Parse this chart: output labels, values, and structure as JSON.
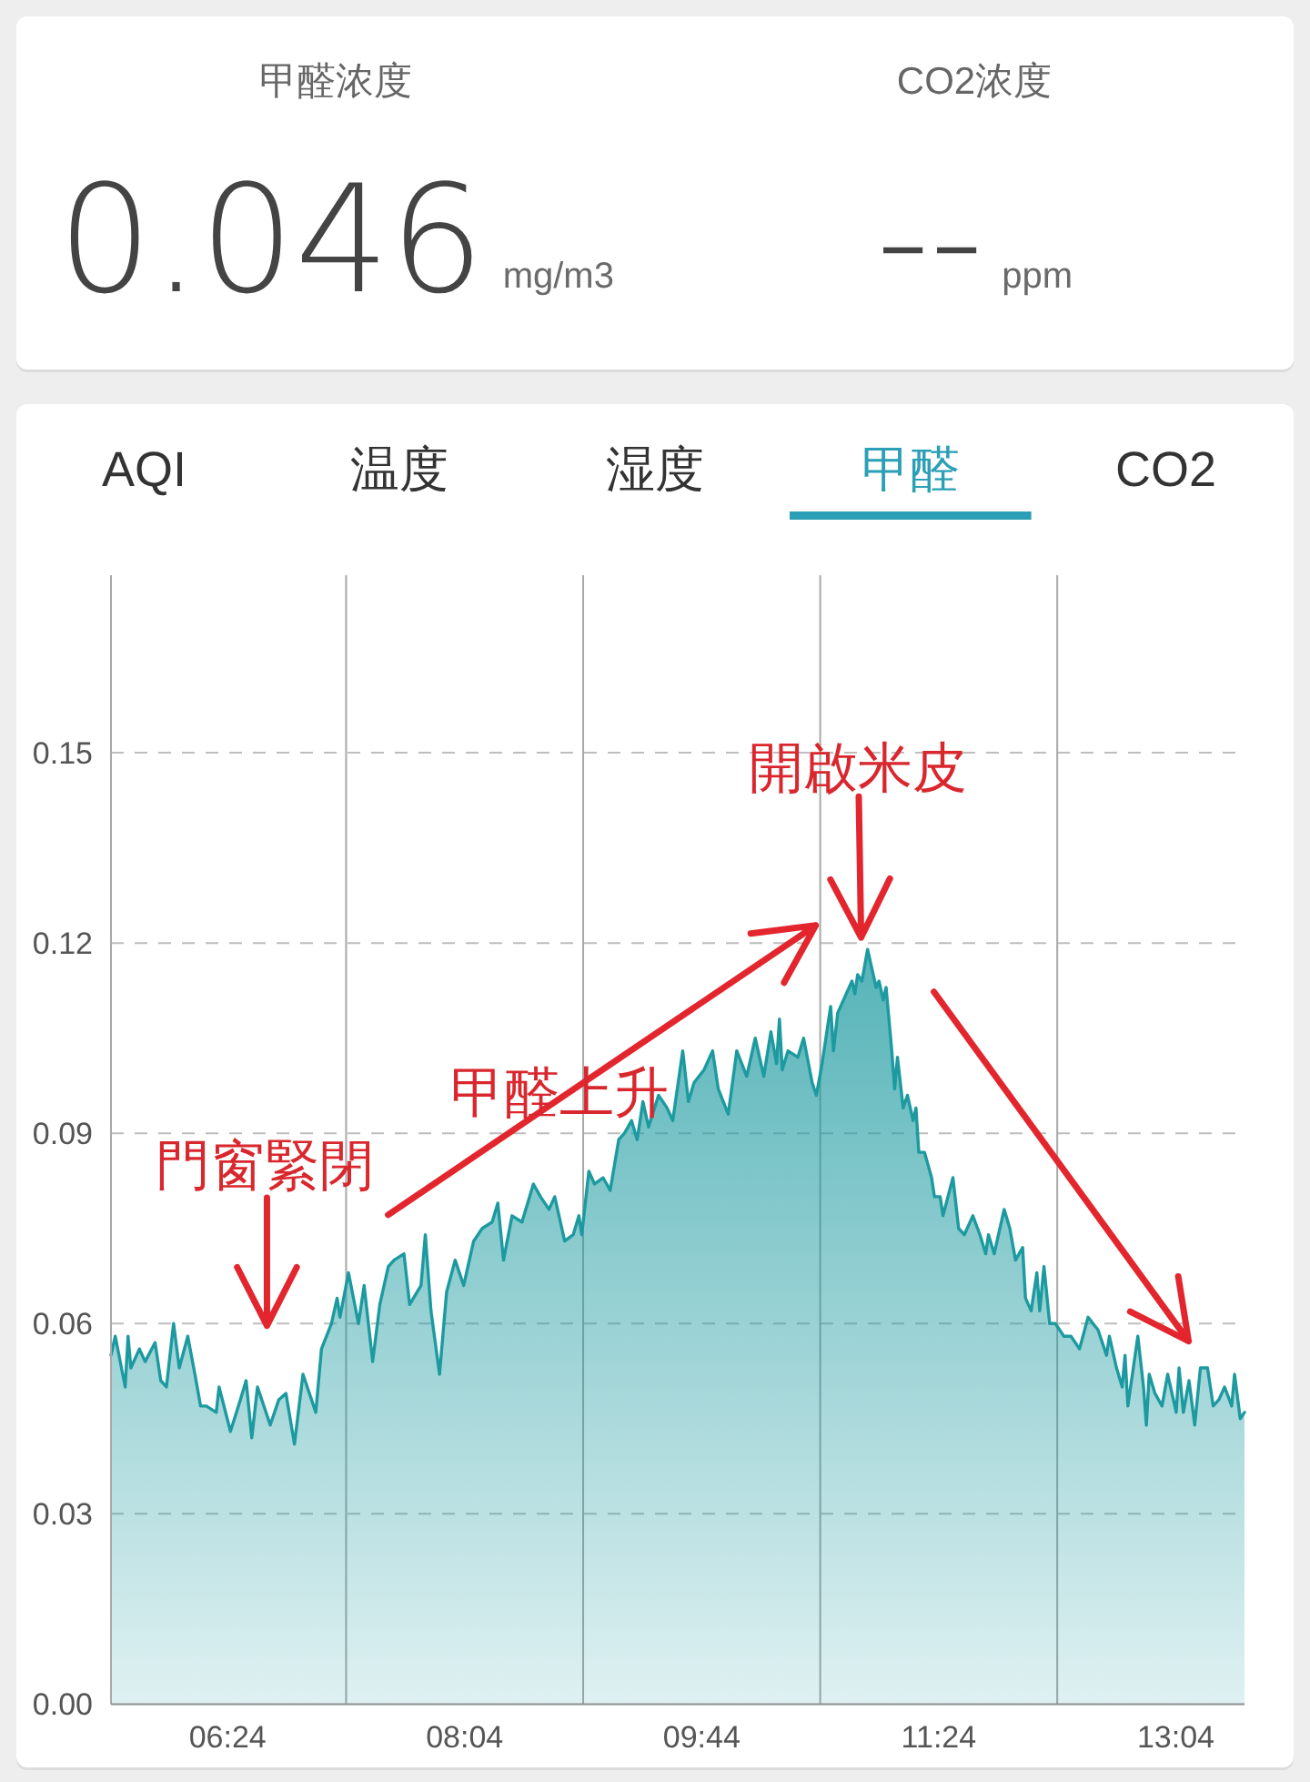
{
  "chart_data": [
    {
      "type": "other",
      "annotations": [
        "甲醛浓度",
        "0.046",
        "mg/m3",
        "CO2浓度",
        "--",
        "ppm"
      ]
    },
    {
      "type": "other",
      "categories": [
        "AQI",
        "温度",
        "湿度",
        "甲醛",
        "CO2"
      ],
      "colors": [
        "#333333",
        "#333333",
        "#333333",
        "#2a9fb5",
        "#333333"
      ]
    },
    {
      "type": "area",
      "color": "#1c9aa0",
      "xlim": [
        5.58,
        13.55
      ],
      "ylim": [
        0,
        0.178
      ],
      "xticks": [
        {
          "value": 6.4,
          "label": "06:24"
        },
        {
          "value": 7.2333,
          "label": null
        },
        {
          "value": 8.0667,
          "label": "08:04"
        },
        {
          "value": 8.9,
          "label": null
        },
        {
          "value": 9.7333,
          "label": "09:44"
        },
        {
          "value": 10.5667,
          "label": null
        },
        {
          "value": 11.4,
          "label": "11:24"
        },
        {
          "value": 12.2333,
          "label": null
        },
        {
          "value": 13.0667,
          "label": "13:04"
        }
      ],
      "yticks": [
        {
          "value": 0,
          "label": "0.00"
        },
        0.03,
        0.06,
        0.09,
        0.12,
        0.15
      ],
      "grid": true,
      "annotations": [
        "門窗緊閉",
        "甲醛上升",
        "開啟米皮"
      ],
      "x": [
        5.58,
        5.61,
        5.68,
        5.7,
        5.72,
        5.78,
        5.82,
        5.89,
        5.93,
        5.97,
        6.02,
        6.06,
        6.12,
        6.17,
        6.21,
        6.25,
        6.32,
        6.34,
        6.42,
        6.49,
        6.53,
        6.57,
        6.61,
        6.7,
        6.76,
        6.81,
        6.87,
        6.93,
        7.02,
        7.06,
        7.13,
        7.17,
        7.19,
        7.25,
        7.32,
        7.36,
        7.42,
        7.47,
        7.53,
        7.57,
        7.64,
        7.68,
        7.76,
        7.79,
        7.83,
        7.89,
        7.94,
        8.0,
        8.06,
        8.13,
        8.19,
        8.26,
        8.3,
        8.34,
        8.4,
        8.47,
        8.55,
        8.6,
        8.66,
        8.7,
        8.77,
        8.83,
        8.87,
        8.89,
        8.94,
        8.98,
        9.04,
        9.09,
        9.15,
        9.19,
        9.24,
        9.28,
        9.32,
        9.36,
        9.43,
        9.49,
        9.53,
        9.6,
        9.64,
        9.68,
        9.75,
        9.81,
        9.85,
        9.92,
        9.98,
        10.05,
        10.11,
        10.17,
        10.22,
        10.26,
        10.28,
        10.3,
        10.34,
        10.41,
        10.45,
        10.51,
        10.54,
        10.58,
        10.64,
        10.66,
        10.69,
        10.75,
        10.79,
        10.81,
        10.83,
        10.86,
        10.9,
        10.94,
        10.96,
        10.98,
        11.01,
        11.03,
        11.07,
        11.09,
        11.11,
        11.15,
        11.18,
        11.22,
        11.24,
        11.26,
        11.3,
        11.35,
        11.37,
        11.41,
        11.43,
        11.5,
        11.54,
        11.58,
        11.64,
        11.69,
        11.73,
        11.75,
        11.79,
        11.86,
        11.9,
        11.94,
        11.99,
        12.01,
        12.05,
        12.09,
        12.11,
        12.14,
        12.18,
        12.22,
        12.28,
        12.33,
        12.39,
        12.45,
        12.52,
        12.58,
        12.6,
        12.65,
        12.69,
        12.71,
        12.73,
        12.8,
        12.84,
        12.86,
        12.88,
        12.92,
        12.97,
        13.01,
        13.07,
        13.09,
        13.12,
        13.16,
        13.2,
        13.24,
        13.29,
        13.33,
        13.37,
        13.41,
        13.46,
        13.48,
        13.52,
        13.55
      ],
      "values": [
        0.055,
        0.058,
        0.05,
        0.058,
        0.053,
        0.056,
        0.054,
        0.057,
        0.051,
        0.05,
        0.06,
        0.053,
        0.058,
        0.052,
        0.047,
        0.047,
        0.046,
        0.05,
        0.043,
        0.048,
        0.051,
        0.042,
        0.05,
        0.044,
        0.048,
        0.049,
        0.041,
        0.052,
        0.046,
        0.056,
        0.06,
        0.064,
        0.061,
        0.068,
        0.06,
        0.066,
        0.054,
        0.063,
        0.069,
        0.07,
        0.071,
        0.063,
        0.066,
        0.074,
        0.062,
        0.052,
        0.065,
        0.07,
        0.066,
        0.073,
        0.075,
        0.076,
        0.079,
        0.07,
        0.077,
        0.076,
        0.082,
        0.08,
        0.078,
        0.08,
        0.073,
        0.074,
        0.077,
        0.074,
        0.084,
        0.082,
        0.083,
        0.081,
        0.089,
        0.09,
        0.092,
        0.089,
        0.095,
        0.091,
        0.096,
        0.094,
        0.092,
        0.103,
        0.095,
        0.098,
        0.1,
        0.103,
        0.097,
        0.093,
        0.103,
        0.099,
        0.105,
        0.099,
        0.106,
        0.101,
        0.108,
        0.1,
        0.103,
        0.102,
        0.105,
        0.098,
        0.096,
        0.101,
        0.11,
        0.103,
        0.109,
        0.112,
        0.114,
        0.112,
        0.115,
        0.114,
        0.119,
        0.115,
        0.113,
        0.114,
        0.111,
        0.113,
        0.103,
        0.097,
        0.102,
        0.094,
        0.096,
        0.092,
        0.094,
        0.087,
        0.087,
        0.083,
        0.08,
        0.08,
        0.077,
        0.083,
        0.075,
        0.074,
        0.077,
        0.074,
        0.071,
        0.074,
        0.071,
        0.078,
        0.075,
        0.07,
        0.072,
        0.064,
        0.062,
        0.068,
        0.062,
        0.069,
        0.06,
        0.06,
        0.058,
        0.058,
        0.056,
        0.061,
        0.059,
        0.055,
        0.058,
        0.053,
        0.05,
        0.055,
        0.047,
        0.058,
        0.05,
        0.044,
        0.052,
        0.049,
        0.047,
        0.052,
        0.046,
        0.053,
        0.046,
        0.051,
        0.044,
        0.053,
        0.053,
        0.047,
        0.048,
        0.05,
        0.047,
        0.052,
        0.045,
        0.046
      ]
    }
  ]
}
